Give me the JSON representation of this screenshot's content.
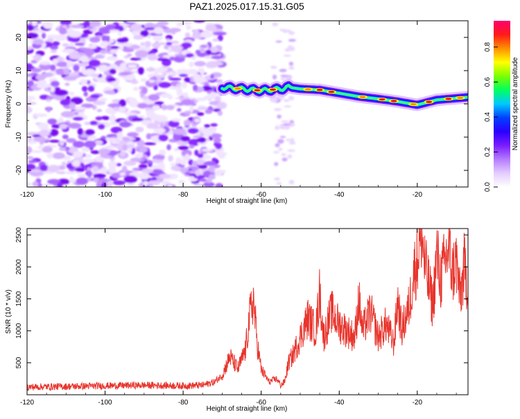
{
  "title": "PAZ1.2025.017.15.31.G05",
  "chart_data": [
    {
      "type": "heatmap",
      "title": "PAZ1.2025.017.15.31.G05",
      "xlabel": "Height of straight line (km)",
      "ylabel": "Frequency (Hz)",
      "xlim": [
        -120,
        -7
      ],
      "ylim": [
        -25,
        25
      ],
      "xticks": [
        -120,
        -100,
        -80,
        -60,
        -40,
        -20
      ],
      "yticks": [
        -20,
        -10,
        0,
        10,
        20
      ],
      "colorbar": {
        "label": "Normalized spectral amplitude",
        "range": [
          0,
          0.95
        ],
        "ticks": [
          0.0,
          0.2,
          0.4,
          0.6,
          0.8
        ],
        "colormap": [
          "#ffffff",
          "#e4ccff",
          "#b57bff",
          "#7a1cff",
          "#2a00ff",
          "#0040ff",
          "#00c8ff",
          "#00ff60",
          "#7cff00",
          "#ffff00",
          "#ff9000",
          "#ff1a1a",
          "#ff0070"
        ]
      },
      "signal_ridge": {
        "x": [
          -70,
          -65,
          -60,
          -55,
          -53,
          -50,
          -45,
          -40,
          -35,
          -30,
          -25,
          -20,
          -15,
          -10,
          -7
        ],
        "frequency": [
          5,
          4.5,
          4,
          4.5,
          5,
          4.5,
          4.2,
          3.2,
          2.2,
          1.5,
          0.7,
          -0.3,
          1.2,
          1.7,
          2
        ]
      },
      "noise_region_x": [
        -120,
        -70
      ]
    },
    {
      "type": "line",
      "xlabel": "Height of straight line (km)",
      "ylabel": "SNR (10 * v/v)",
      "xlim": [
        -120,
        -7
      ],
      "ylim": [
        0,
        2600
      ],
      "xticks": [
        -120,
        -100,
        -80,
        -60,
        -40,
        -20
      ],
      "yticks": [
        500,
        1000,
        1500,
        2000,
        2500
      ],
      "color": "#e8342c",
      "series": [
        {
          "x": [
            -120,
            -110,
            -100,
            -90,
            -80,
            -75,
            -72,
            -70,
            -68,
            -66,
            -64,
            -63,
            -62,
            -61,
            -60,
            -58,
            -56,
            -55,
            -54,
            -53,
            -52,
            -50,
            -48,
            -46,
            -45,
            -44,
            -42,
            -40,
            -38,
            -36,
            -35,
            -34,
            -32,
            -30,
            -28,
            -26,
            -25,
            -24,
            -22,
            -21,
            -20,
            -19,
            -18,
            -16,
            -15,
            -14,
            -12,
            -11,
            -10,
            -9,
            -8,
            -7
          ],
          "values": [
            120,
            130,
            140,
            150,
            140,
            150,
            200,
            300,
            600,
            400,
            700,
            1200,
            1500,
            800,
            400,
            200,
            250,
            150,
            200,
            500,
            600,
            900,
            1200,
            1000,
            1600,
            900,
            1300,
            1100,
            1000,
            900,
            1500,
            1000,
            1300,
            900,
            1100,
            800,
            1500,
            1000,
            1400,
            1900,
            2100,
            2600,
            2000,
            1400,
            2200,
            1800,
            2300,
            1900,
            2100,
            1500,
            2000,
            1700
          ]
        }
      ]
    }
  ]
}
